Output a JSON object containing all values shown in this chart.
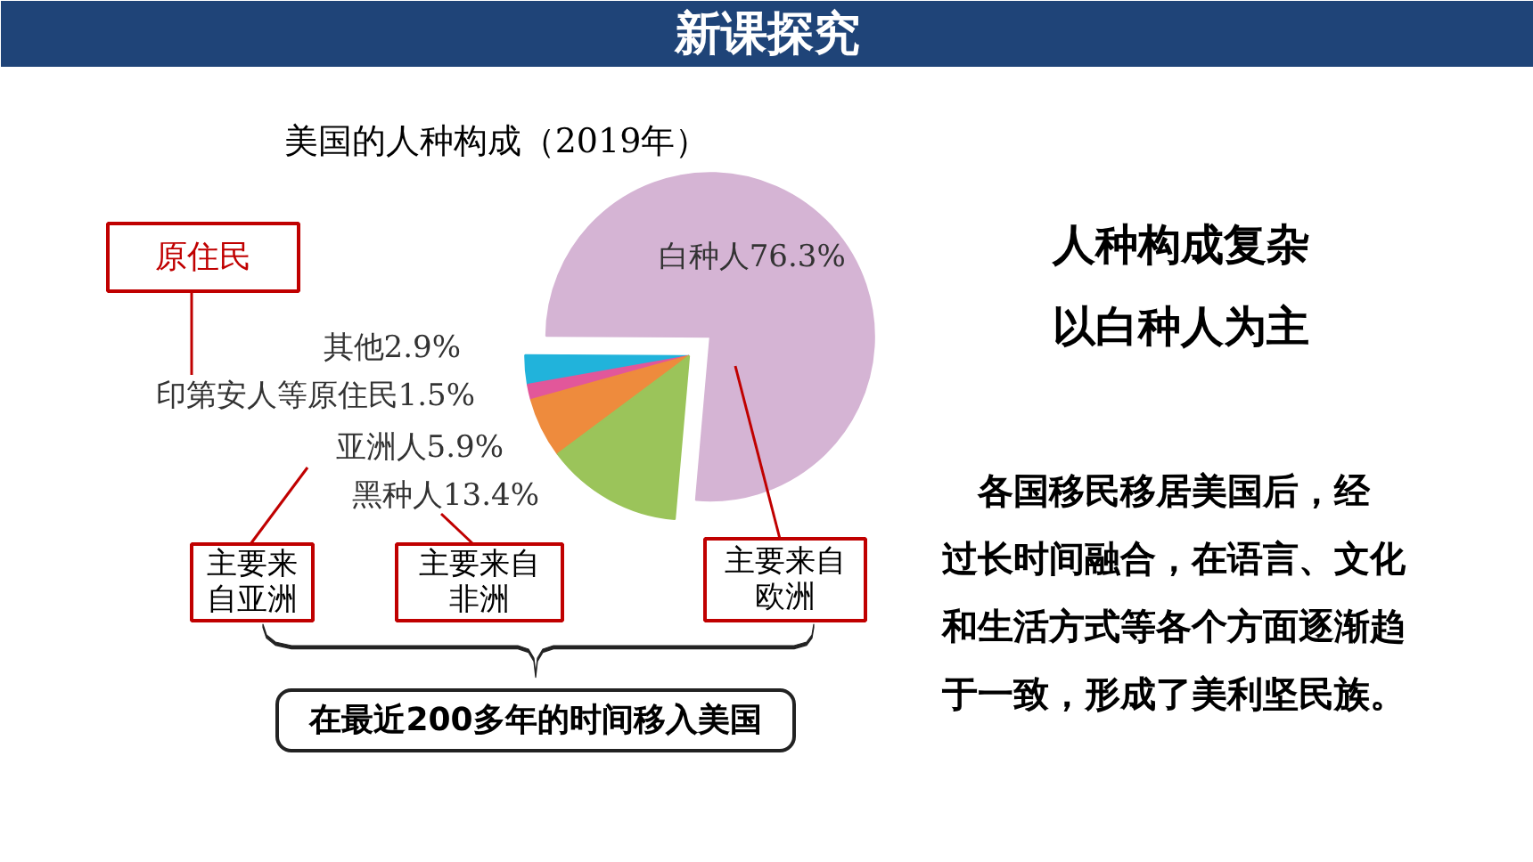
{
  "chart_data": {
    "type": "pie",
    "title": "美国的人种构成（2019年）",
    "categories": [
      "白种人",
      "其他",
      "印第安人等原住民",
      "亚洲人",
      "黑种人"
    ],
    "values": [
      76.3,
      2.9,
      1.5,
      5.9,
      13.4
    ],
    "colors": [
      "#d5b4d4",
      "#21b3db",
      "#e2579a",
      "#ee8b3d",
      "#9bc45a"
    ],
    "value_labels": [
      "76.3%",
      "2.9%",
      "1.5%",
      "5.9%",
      "13.4%"
    ],
    "annotations": [
      "新课探究",
      "原住民",
      "主要来自亚洲",
      "主要来自非洲",
      "主要来自欧洲",
      "在最近200多年的时间移入美国",
      "人种构成复杂",
      "以白种人为主",
      "各国移民移居美国后，经过长时间融合，在语言、文化和生活方式等各个方面逐渐趋于一致，形成了美利坚民族。"
    ]
  }
}
